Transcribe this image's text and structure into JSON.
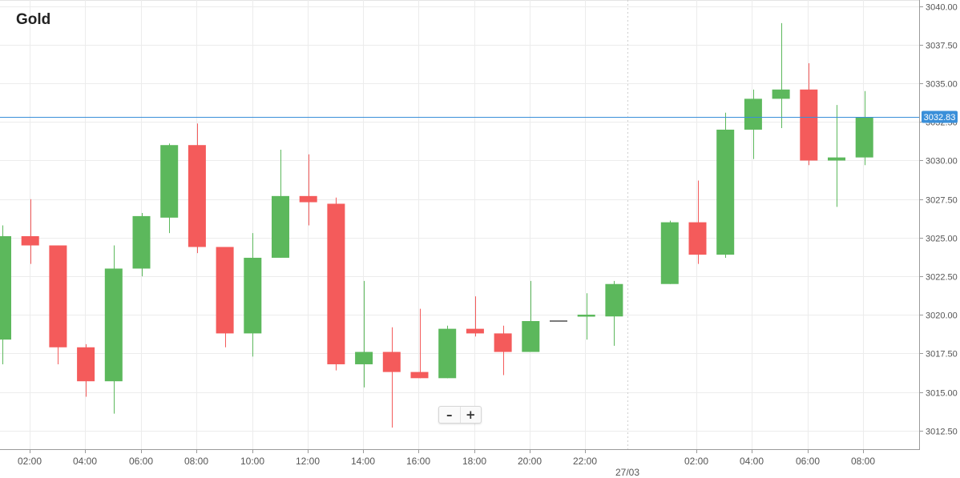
{
  "title": "Gold",
  "zoom": {
    "minus_label": "–",
    "plus_label": "+"
  },
  "colors": {
    "up": "#5cb85c",
    "down": "#f45b5b",
    "price_line": "#3a8fd9",
    "grid": "#ececec",
    "axis": "#555555",
    "flat": "#222222"
  },
  "chart_data": {
    "type": "candlestick",
    "title": "Gold",
    "x_ticks": [
      "02:00",
      "04:00",
      "06:00",
      "08:00",
      "10:00",
      "12:00",
      "14:00",
      "16:00",
      "18:00",
      "20:00",
      "22:00",
      "27/03",
      "02:00",
      "04:00",
      "06:00",
      "08:00"
    ],
    "y_ticks": [
      "3012.50",
      "3015.00",
      "3017.50",
      "3020.00",
      "3022.50",
      "3025.00",
      "3027.50",
      "3030.00",
      "3032.50",
      "3035.00",
      "3037.50",
      "3040.00"
    ],
    "y_range": [
      3011.3,
      3040.4
    ],
    "current_price": 3032.83,
    "current_price_label": "3032.83",
    "date_separator": "27/03",
    "candles": [
      {
        "time": "00:00",
        "open": 3018.4,
        "high": 3025.8,
        "low": 3016.8,
        "close": 3025.1
      },
      {
        "time": "01:00",
        "open": 3025.1,
        "high": 3027.5,
        "low": 3023.3,
        "close": 3024.5
      },
      {
        "time": "02:00",
        "open": 3024.5,
        "high": 3024.5,
        "low": 3016.8,
        "close": 3017.9
      },
      {
        "time": "03:00",
        "open": 3017.9,
        "high": 3018.1,
        "low": 3014.7,
        "close": 3015.7
      },
      {
        "time": "04:00",
        "open": 3015.7,
        "high": 3024.5,
        "low": 3013.6,
        "close": 3023.0
      },
      {
        "time": "05:00",
        "open": 3023.0,
        "high": 3026.6,
        "low": 3022.5,
        "close": 3026.4
      },
      {
        "time": "06:00",
        "open": 3026.3,
        "high": 3031.1,
        "low": 3025.3,
        "close": 3031.0
      },
      {
        "time": "07:00",
        "open": 3031.0,
        "high": 3032.4,
        "low": 3024.0,
        "close": 3024.4
      },
      {
        "time": "08:00",
        "open": 3024.4,
        "high": 3024.4,
        "low": 3017.9,
        "close": 3018.8
      },
      {
        "time": "09:00",
        "open": 3018.8,
        "high": 3025.3,
        "low": 3017.3,
        "close": 3023.7
      },
      {
        "time": "10:00",
        "open": 3023.7,
        "high": 3030.7,
        "low": 3023.7,
        "close": 3027.7
      },
      {
        "time": "11:00",
        "open": 3027.7,
        "high": 3030.4,
        "low": 3025.8,
        "close": 3027.3
      },
      {
        "time": "12:00",
        "open": 3027.2,
        "high": 3027.6,
        "low": 3016.4,
        "close": 3016.8
      },
      {
        "time": "13:00",
        "open": 3016.8,
        "high": 3022.2,
        "low": 3015.3,
        "close": 3017.6
      },
      {
        "time": "14:00",
        "open": 3017.6,
        "high": 3019.2,
        "low": 3012.7,
        "close": 3016.3
      },
      {
        "time": "15:00",
        "open": 3016.3,
        "high": 3020.4,
        "low": 3015.9,
        "close": 3015.9
      },
      {
        "time": "16:00",
        "open": 3015.9,
        "high": 3019.3,
        "low": 3015.9,
        "close": 3019.1
      },
      {
        "time": "17:00",
        "open": 3019.1,
        "high": 3021.2,
        "low": 3018.6,
        "close": 3018.8
      },
      {
        "time": "18:00",
        "open": 3018.8,
        "high": 3019.3,
        "low": 3016.1,
        "close": 3017.6
      },
      {
        "time": "19:00",
        "open": 3017.6,
        "high": 3022.2,
        "low": 3017.6,
        "close": 3019.6
      },
      {
        "time": "20:00",
        "open": 3019.6,
        "high": 3019.6,
        "low": 3019.6,
        "close": 3019.6
      },
      {
        "time": "21:00",
        "open": 3019.9,
        "high": 3021.4,
        "low": 3018.4,
        "close": 3020.0
      },
      {
        "time": "22:00",
        "open": 3019.9,
        "high": 3022.2,
        "low": 3018.0,
        "close": 3022.0
      },
      {
        "time": "01:00",
        "open": 3022.0,
        "high": 3026.1,
        "low": 3022.0,
        "close": 3026.0
      },
      {
        "time": "02:00",
        "open": 3026.0,
        "high": 3028.7,
        "low": 3023.3,
        "close": 3023.9
      },
      {
        "time": "03:00",
        "open": 3023.9,
        "high": 3033.1,
        "low": 3023.7,
        "close": 3032.0
      },
      {
        "time": "04:00",
        "open": 3032.0,
        "high": 3034.6,
        "low": 3030.1,
        "close": 3034.0
      },
      {
        "time": "05:00",
        "open": 3034.0,
        "high": 3038.9,
        "low": 3032.1,
        "close": 3034.6
      },
      {
        "time": "06:00",
        "open": 3034.6,
        "high": 3036.3,
        "low": 3029.7,
        "close": 3030.0
      },
      {
        "time": "07:00",
        "open": 3030.0,
        "high": 3033.6,
        "low": 3027.0,
        "close": 3030.2
      },
      {
        "time": "08:00",
        "open": 3030.2,
        "high": 3034.5,
        "low": 3029.7,
        "close": 3032.8
      }
    ]
  }
}
